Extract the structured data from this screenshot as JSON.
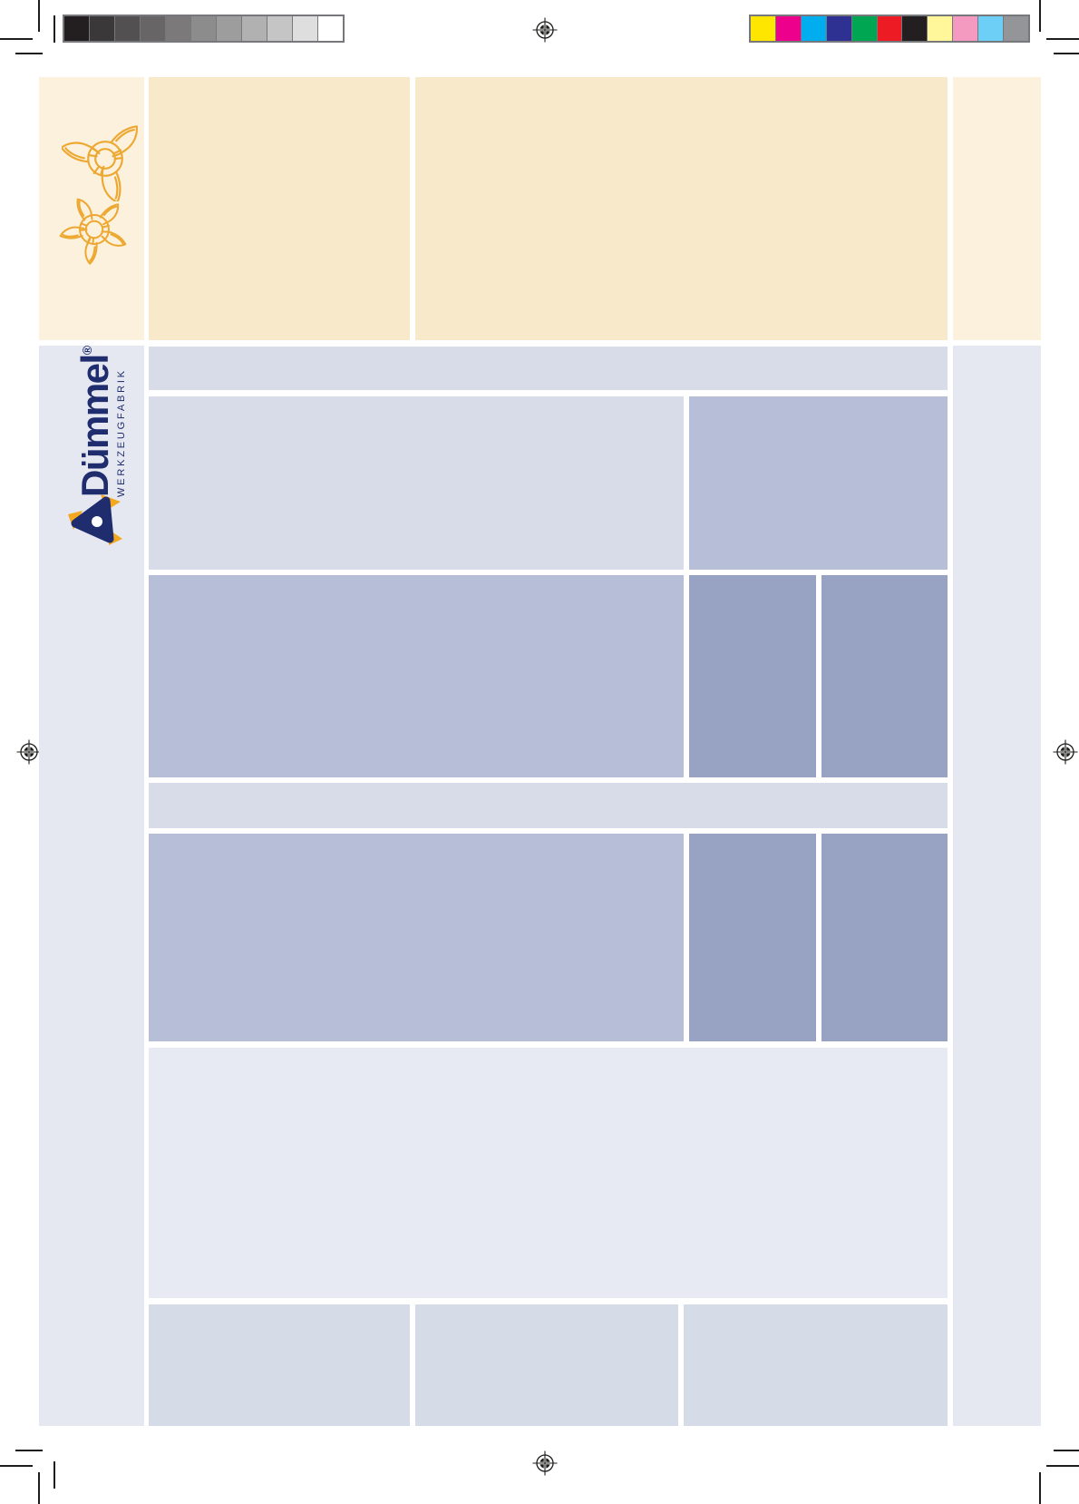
{
  "logo": {
    "brand": "Dümmel",
    "registered": "®",
    "subtitle": "WERKZEUGFABRIK"
  },
  "calibration": {
    "grayscale_bar": [
      "#231f20",
      "#3b3839",
      "#525051",
      "#676566",
      "#7b797a",
      "#8d8c8d",
      "#9e9d9e",
      "#b1b1b2",
      "#c5c5c6",
      "#dedede",
      "#ffffff"
    ],
    "color_bar": [
      "#ffe600",
      "#ec008c",
      "#00aeef",
      "#2e3192",
      "#00a651",
      "#ed1c24",
      "#231f20",
      "#fff799",
      "#f49ac1",
      "#6dcff6",
      "#939598"
    ]
  },
  "theme": {
    "cream_light": "#fcf1dd",
    "cream": "#f9e9cb",
    "lav_col": "#e6e8f1",
    "blue_light": "#d8dce9",
    "blue_mid": "#b7bed8",
    "blue_dark": "#98a3c3",
    "blue_faint": "#e8eaf3",
    "blue_soft": "#d6dbe8",
    "navy": "#1f2c6e",
    "orange": "#f3a81f",
    "mark_black": "#1d1d1b",
    "bar_border": "#77787b"
  }
}
